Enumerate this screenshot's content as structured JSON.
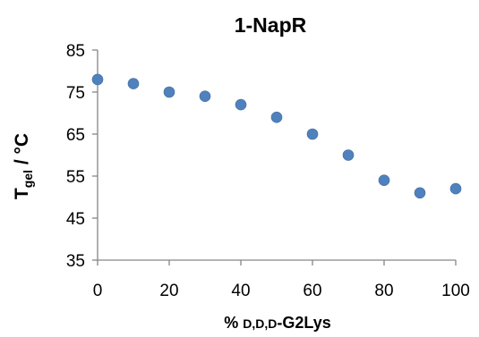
{
  "chart_data": {
    "type": "scatter",
    "title": "1-NapR",
    "xlabel": {
      "prefix": "% ",
      "smallcaps": "D,D,D",
      "suffix": "-G2Lys"
    },
    "ylabel": {
      "main": "T",
      "subscript": "gel",
      "suffix": " / °C"
    },
    "xlim": [
      0,
      100
    ],
    "ylim": [
      35,
      85
    ],
    "xticks": [
      0,
      20,
      40,
      60,
      80,
      100
    ],
    "yticks": [
      35,
      45,
      55,
      65,
      75,
      85
    ],
    "grid": false,
    "marker_color": "#4F81BD",
    "series": [
      {
        "x": [
          0,
          10,
          20,
          30,
          40,
          50,
          60,
          70,
          80,
          90,
          100
        ],
        "y": [
          78,
          77,
          75,
          74,
          72,
          69,
          65,
          60,
          54,
          51,
          52
        ]
      }
    ]
  }
}
